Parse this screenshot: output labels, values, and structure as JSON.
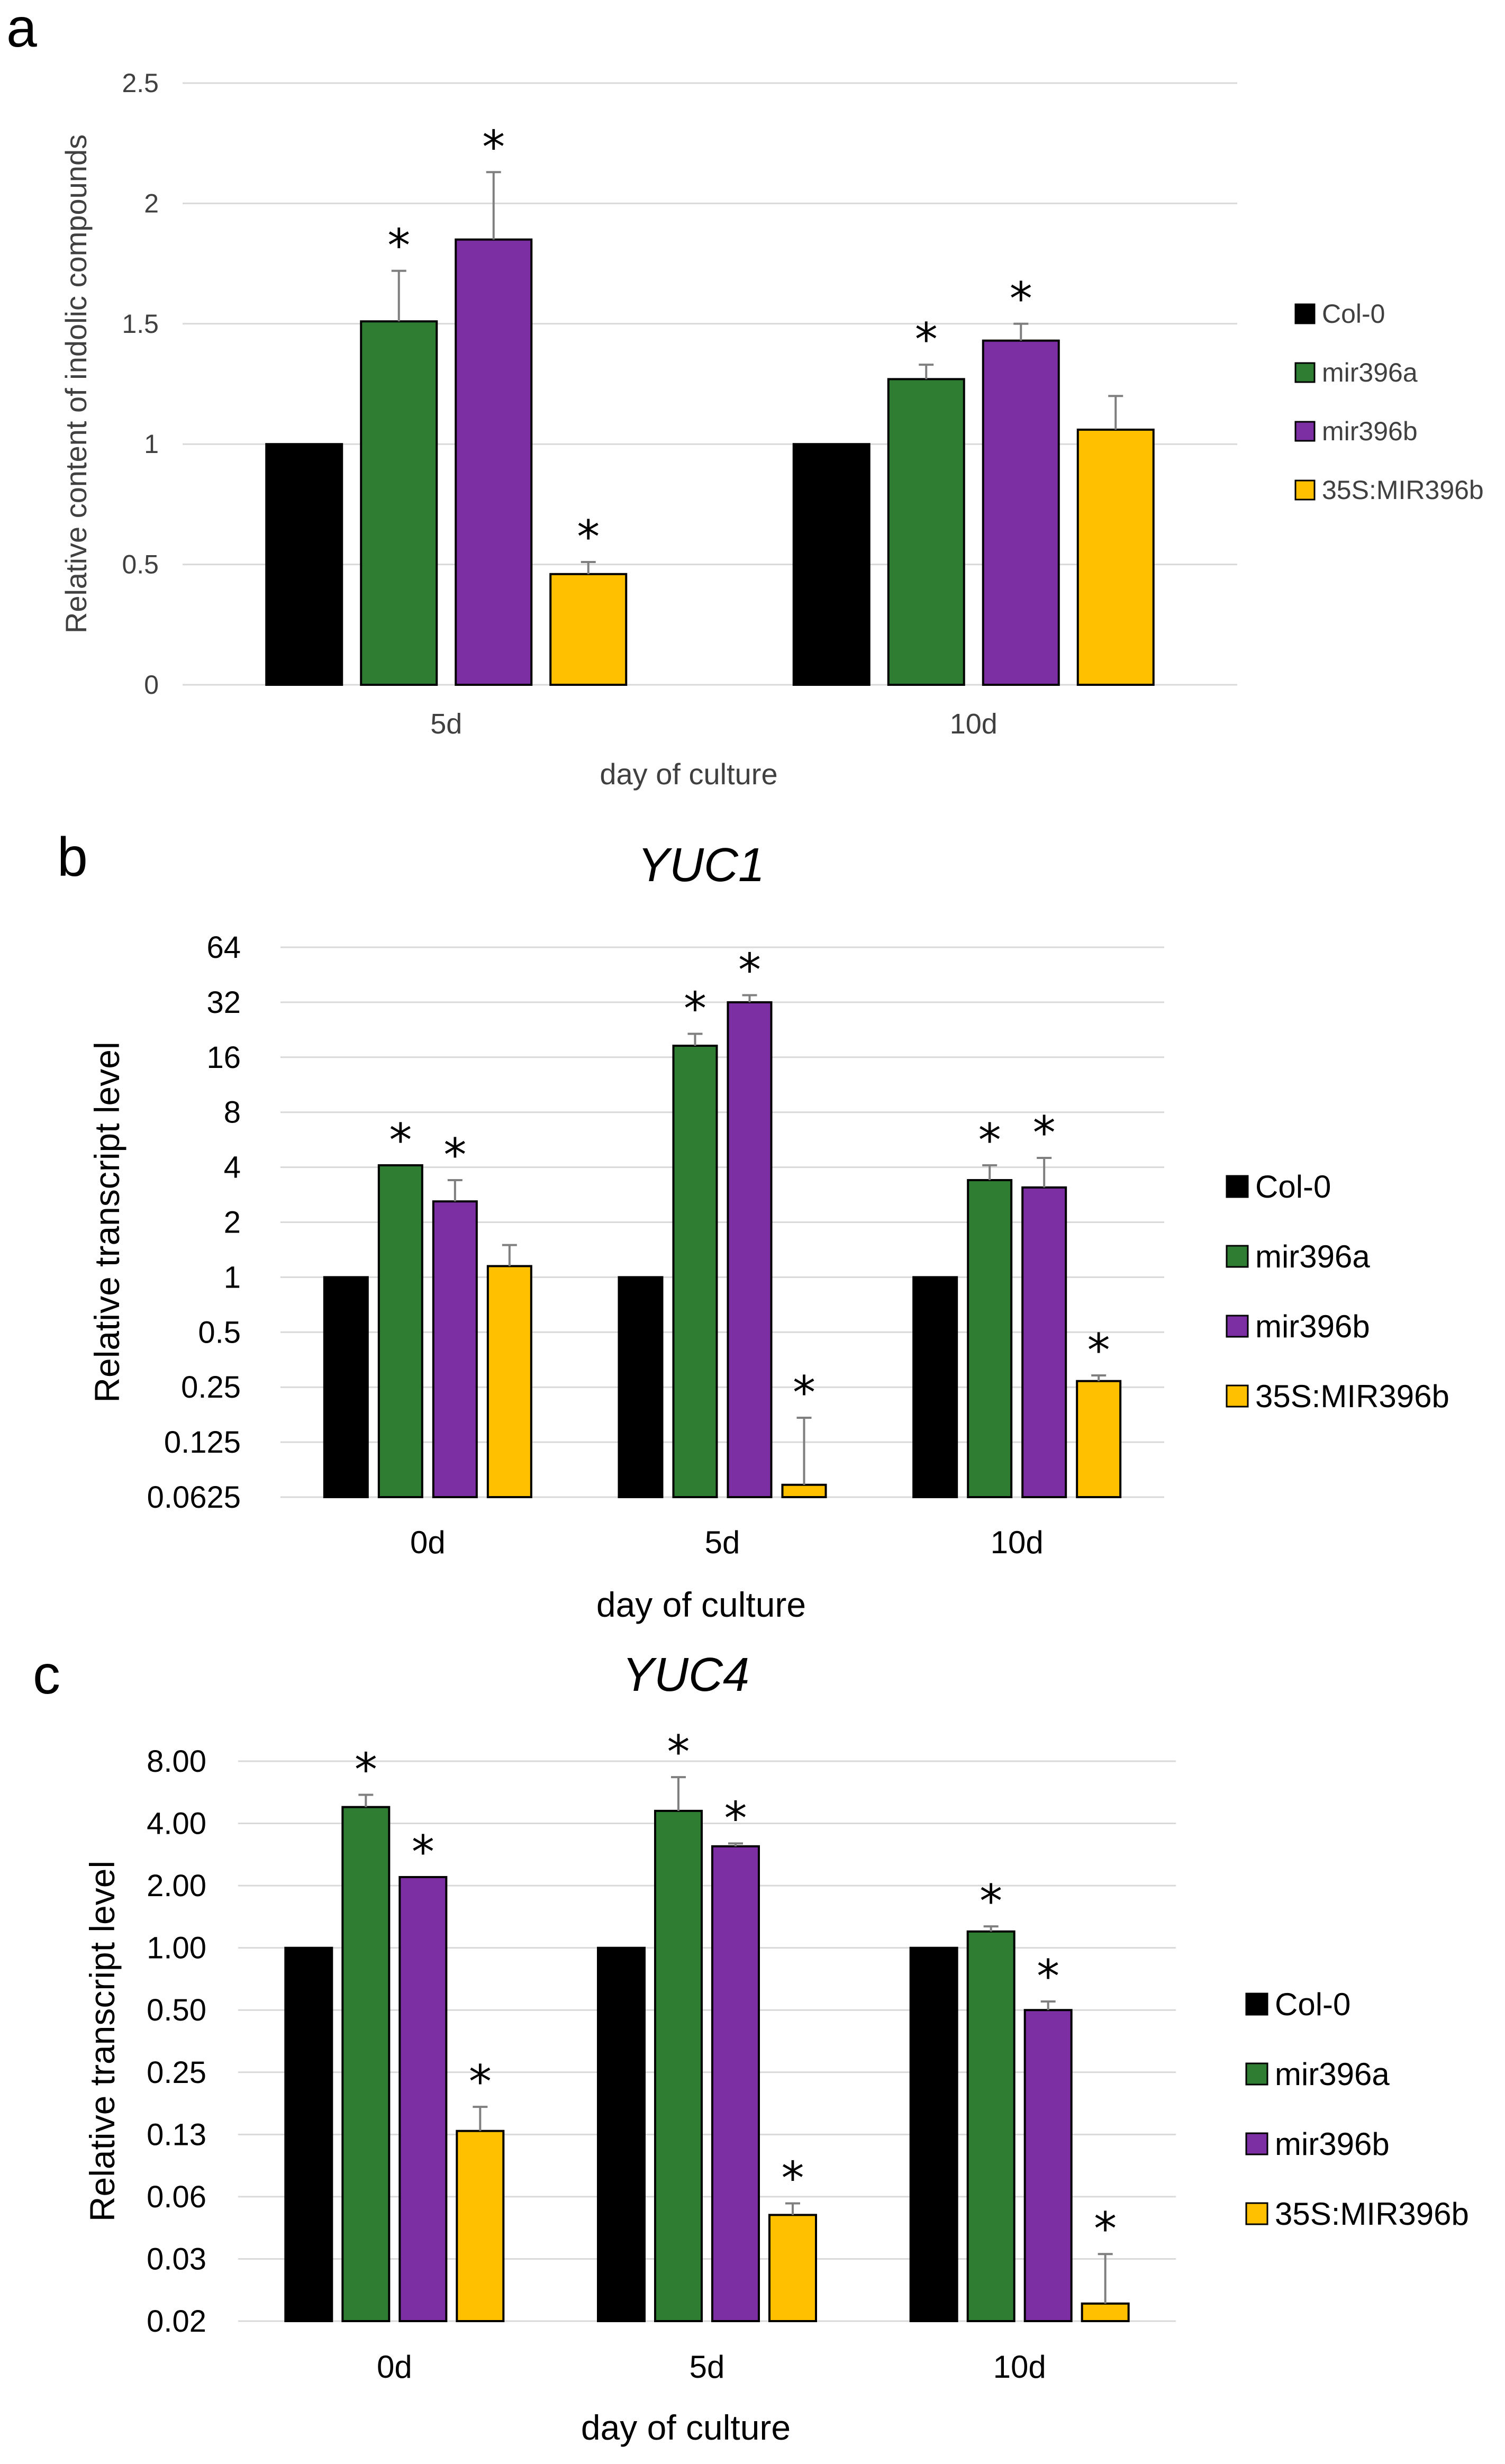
{
  "colors": {
    "Col-0": "#000000",
    "mir396a": "#2e7d32",
    "mir396b": "#7b2fa3",
    "35S:MIR396b": "#ffc000",
    "grid": "#d9d9d9",
    "error": "#7f7f7f"
  },
  "chart_data": [
    {
      "panel": "a",
      "type": "bar",
      "title": "",
      "scale": "linear",
      "categories": [
        "5d",
        "10d"
      ],
      "xlabel": "day of culture",
      "ylabel": "Relative content of indolic compounds",
      "ylim": [
        0,
        2.5
      ],
      "yticks": [
        "0",
        "0.5",
        "1",
        "1.5",
        "2",
        "2.5"
      ],
      "ytick_values": [
        0,
        0.5,
        1,
        1.5,
        2,
        2.5
      ],
      "series": [
        {
          "name": "Col-0",
          "values": [
            1.0,
            1.0
          ],
          "errors": [
            0,
            0
          ],
          "significant": [
            false,
            false
          ]
        },
        {
          "name": "mir396a",
          "values": [
            1.51,
            1.27
          ],
          "errors": [
            0.21,
            0.06
          ],
          "significant": [
            true,
            true
          ]
        },
        {
          "name": "mir396b",
          "values": [
            1.85,
            1.43
          ],
          "errors": [
            0.28,
            0.07
          ],
          "significant": [
            true,
            true
          ]
        },
        {
          "name": "35S:MIR396b",
          "values": [
            0.46,
            1.06
          ],
          "errors": [
            0.05,
            0.14
          ],
          "significant": [
            true,
            false
          ]
        }
      ],
      "legend": "right"
    },
    {
      "panel": "b",
      "type": "bar",
      "title": "YUC1",
      "scale": "log2",
      "categories": [
        "0d",
        "5d",
        "10d"
      ],
      "xlabel": "day of culture",
      "ylabel": "Relative transcript level",
      "ylim": [
        0.0625,
        64
      ],
      "yticks": [
        "0.0625",
        "0.125",
        "0.25",
        "0.5",
        "1",
        "2",
        "4",
        "8",
        "16",
        "32",
        "64"
      ],
      "ytick_values": [
        0.0625,
        0.125,
        0.25,
        0.5,
        1,
        2,
        4,
        8,
        16,
        32,
        64
      ],
      "series": [
        {
          "name": "Col-0",
          "values": [
            1.0,
            1.0,
            1.0
          ],
          "errors_upper": [
            1.0,
            1.0,
            1.0
          ],
          "significant": [
            false,
            false,
            false
          ]
        },
        {
          "name": "mir396a",
          "values": [
            4.1,
            18.5,
            3.4
          ],
          "errors_upper": [
            4.1,
            21.5,
            4.1
          ],
          "significant": [
            true,
            true,
            true
          ]
        },
        {
          "name": "mir396b",
          "values": [
            2.6,
            32,
            3.1
          ],
          "errors_upper": [
            3.4,
            35,
            4.5
          ],
          "significant": [
            true,
            true,
            true
          ]
        },
        {
          "name": "35S:MIR396b",
          "values": [
            1.15,
            0.073,
            0.27
          ],
          "errors_upper": [
            1.5,
            0.17,
            0.29
          ],
          "significant": [
            false,
            true,
            true
          ]
        }
      ],
      "legend": "right"
    },
    {
      "panel": "c",
      "type": "bar",
      "title": "YUC4",
      "scale": "log2",
      "categories": [
        "0d",
        "5d",
        "10d"
      ],
      "xlabel": "day of culture",
      "ylabel": "Relative transcript level",
      "ylim": [
        0.015625,
        8
      ],
      "yticks": [
        "0.02",
        "0.03",
        "0.06",
        "0.13",
        "0.25",
        "0.50",
        "1.00",
        "2.00",
        "4.00",
        "8.00"
      ],
      "ytick_values": [
        0.015625,
        0.03125,
        0.0625,
        0.125,
        0.25,
        0.5,
        1,
        2,
        4,
        8
      ],
      "series": [
        {
          "name": "Col-0",
          "values": [
            1.0,
            1.0,
            1.0
          ],
          "errors_upper": [
            1.0,
            1.0,
            1.0
          ],
          "significant": [
            false,
            false,
            false
          ]
        },
        {
          "name": "mir396a",
          "values": [
            4.8,
            4.6,
            1.2
          ],
          "errors_upper": [
            5.5,
            6.7,
            1.27
          ],
          "significant": [
            true,
            true,
            true
          ]
        },
        {
          "name": "mir396b",
          "values": [
            2.2,
            3.1,
            0.5
          ],
          "errors_upper": [
            2.2,
            3.2,
            0.55
          ],
          "significant": [
            true,
            true,
            true
          ]
        },
        {
          "name": "35S:MIR396b",
          "values": [
            0.13,
            0.051,
            0.019
          ],
          "errors_upper": [
            0.17,
            0.058,
            0.033
          ],
          "significant": [
            true,
            true,
            true
          ]
        }
      ],
      "legend": "right"
    }
  ],
  "panels": {
    "a": {
      "letter": "a"
    },
    "b": {
      "letter": "b"
    },
    "c": {
      "letter": "c"
    }
  },
  "significance_marker": "*"
}
